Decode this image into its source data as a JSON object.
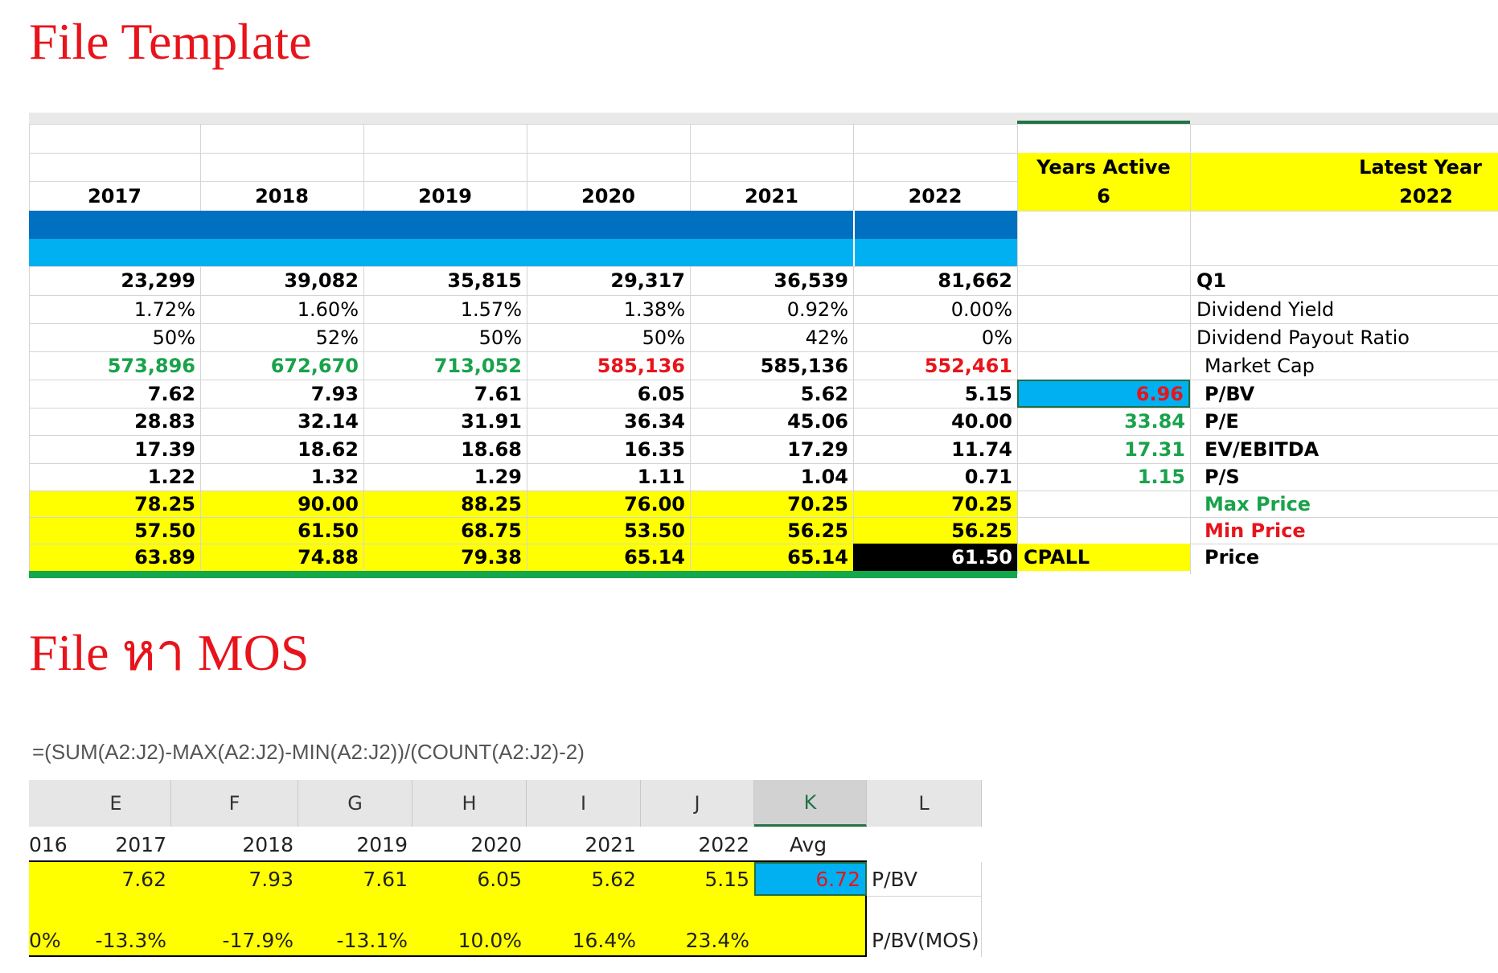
{
  "titles": {
    "template": "File Template",
    "mos": "File หา MOS"
  },
  "sheet1": {
    "years_active_label": "Years Active",
    "years_active_value": "6",
    "latest_year_label": "Latest Year",
    "latest_year_value": "2022",
    "years": [
      "2017",
      "2018",
      "2019",
      "2020",
      "2021",
      "2022"
    ],
    "rows": [
      {
        "values": [
          "23,299",
          "39,082",
          "35,815",
          "29,317",
          "36,539",
          "81,662"
        ],
        "mid": "",
        "label": "Q1"
      },
      {
        "values": [
          "1.72%",
          "1.60%",
          "1.57%",
          "1.38%",
          "0.92%",
          "0.00%"
        ],
        "mid": "",
        "label": "Dividend Yield"
      },
      {
        "values": [
          "50%",
          "52%",
          "50%",
          "50%",
          "42%",
          "0%"
        ],
        "mid": "",
        "label": "Dividend Payout Ratio"
      },
      {
        "values": [
          "573,896",
          "672,670",
          "713,052",
          "585,136",
          "585,136",
          "552,461"
        ],
        "mid": "",
        "label": "Market Cap"
      },
      {
        "values": [
          "7.62",
          "7.93",
          "7.61",
          "6.05",
          "5.62",
          "5.15"
        ],
        "mid": "6.96",
        "label": "P/BV"
      },
      {
        "values": [
          "28.83",
          "32.14",
          "31.91",
          "36.34",
          "45.06",
          "40.00"
        ],
        "mid": "33.84",
        "label": "P/E"
      },
      {
        "values": [
          "17.39",
          "18.62",
          "18.68",
          "16.35",
          "17.29",
          "11.74"
        ],
        "mid": "17.31",
        "label": "EV/EBITDA"
      },
      {
        "values": [
          "1.22",
          "1.32",
          "1.29",
          "1.11",
          "1.04",
          "0.71"
        ],
        "mid": "1.15",
        "label": "P/S"
      },
      {
        "values": [
          "78.25",
          "90.00",
          "88.25",
          "76.00",
          "70.25",
          "70.25"
        ],
        "mid": "",
        "label": "Max Price"
      },
      {
        "values": [
          "57.50",
          "61.50",
          "68.75",
          "53.50",
          "56.25",
          "56.25"
        ],
        "mid": "",
        "label": "Min Price"
      },
      {
        "values": [
          "63.89",
          "74.88",
          "79.38",
          "65.14",
          "65.14",
          "61.50"
        ],
        "mid": "CPALL",
        "label": "Price"
      }
    ],
    "colors": {
      "yellow": "#ffff00",
      "dark_blue": "#0070c0",
      "light_blue": "#00b0f0",
      "green": "#19a24b",
      "red": "#e8141b",
      "black": "#000000"
    }
  },
  "sheet2": {
    "formula": "=(SUM(A2:J2)-MAX(A2:J2)-MIN(A2:J2))/(COUNT(A2:J2)-2)",
    "col_letters": [
      "E",
      "F",
      "G",
      "H",
      "I",
      "J",
      "K",
      "L"
    ],
    "header_row": [
      "016",
      "2017",
      "2018",
      "2019",
      "2020",
      "2021",
      "2022",
      "Avg"
    ],
    "pbv_row": [
      "7.62",
      "7.93",
      "7.61",
      "6.05",
      "5.62",
      "5.15"
    ],
    "pbv_avg": "6.72",
    "pbv_label": "P/BV",
    "mos_row": [
      "0%",
      "-13.3%",
      "-17.9%",
      "-13.1%",
      "10.0%",
      "16.4%",
      "23.4%"
    ],
    "mos_label": "P/BV(MOS)"
  }
}
